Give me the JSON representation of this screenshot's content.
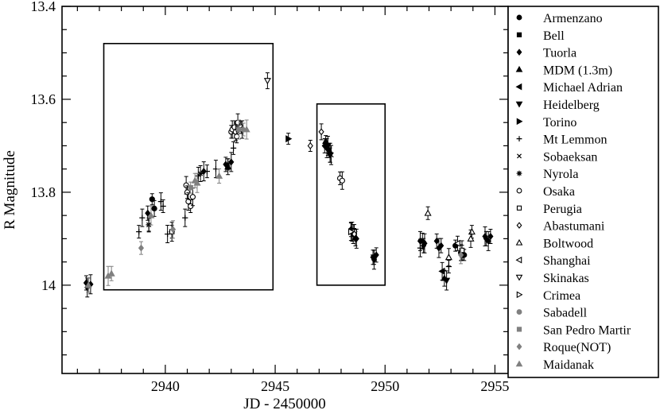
{
  "chart_data": {
    "type": "scatter",
    "xlabel": "JD - 2450000",
    "ylabel": "R Magnitude",
    "xlim": [
      2935.3,
      2955.6
    ],
    "ylim": [
      14.19,
      13.4
    ],
    "y_inverted": true,
    "x_ticks": [
      2940,
      2945,
      2950,
      2955
    ],
    "y_ticks": [
      13.4,
      13.6,
      13.8,
      14
    ],
    "x_tick_labels": [
      "2940",
      "2945",
      "2950",
      "2955"
    ],
    "y_tick_labels": [
      "13.4",
      "13.6",
      "13.8",
      "14"
    ],
    "grid": false,
    "legend_position": "right, outside",
    "highlight_boxes": [
      {
        "x": [
          2937.2,
          2944.9
        ],
        "y": [
          13.48,
          14.01
        ]
      },
      {
        "x": [
          2946.9,
          2950.0
        ],
        "y": [
          13.61,
          14.0
        ]
      }
    ],
    "series": [
      {
        "name": "Armenzano",
        "marker": "filled-circle",
        "color": "#000000",
        "points": [
          [
            2939.4,
            13.815
          ],
          [
            2939.5,
            13.835
          ],
          [
            2953.2,
            13.915
          ],
          [
            2953.45,
            13.93
          ],
          [
            2953.6,
            13.935
          ]
        ]
      },
      {
        "name": "Bell",
        "marker": "filled-square",
        "color": "#000000",
        "points": [
          [
            2953.5,
            13.928
          ]
        ]
      },
      {
        "name": "Tuorla",
        "marker": "filled-diamond",
        "color": "#000000",
        "points": [
          [
            2936.4,
            13.995
          ],
          [
            2936.45,
            14.005
          ],
          [
            2936.5,
            14.0
          ],
          [
            2936.6,
            13.998
          ],
          [
            2939.2,
            13.845
          ],
          [
            2941.75,
            13.755
          ],
          [
            2942.75,
            13.74
          ],
          [
            2943.0,
            13.735
          ],
          [
            2947.25,
            13.7
          ],
          [
            2947.35,
            13.705
          ],
          [
            2947.45,
            13.71
          ],
          [
            2947.5,
            13.715
          ],
          [
            2948.45,
            13.88
          ],
          [
            2948.55,
            13.89
          ],
          [
            2948.65,
            13.9
          ],
          [
            2948.7,
            13.9
          ],
          [
            2949.45,
            13.94
          ],
          [
            2949.5,
            13.945
          ],
          [
            2949.6,
            13.935
          ],
          [
            2951.6,
            13.905
          ],
          [
            2951.75,
            13.915
          ],
          [
            2951.8,
            13.91
          ],
          [
            2952.35,
            13.905
          ],
          [
            2952.45,
            13.92
          ],
          [
            2952.55,
            13.915
          ],
          [
            2954.55,
            13.895
          ],
          [
            2954.6,
            13.9
          ],
          [
            2954.7,
            13.905
          ],
          [
            2954.8,
            13.895
          ]
        ]
      },
      {
        "name": "MDM (1.3m)",
        "marker": "filled-triangle-up",
        "color": "#000000",
        "points": [
          [
            2942.85,
            13.745
          ],
          [
            2947.3,
            13.69
          ],
          [
            2952.7,
            13.985
          ]
        ]
      },
      {
        "name": "Michael Adrian",
        "marker": "filled-triangle-left",
        "color": "#000000",
        "points": [
          [
            2952.6,
            13.97
          ]
        ]
      },
      {
        "name": "Heidelberg",
        "marker": "filled-triangle-down",
        "color": "#000000",
        "points": [
          [
            2947.4,
            13.7
          ],
          [
            2947.5,
            13.72
          ],
          [
            2948.5,
            13.885
          ],
          [
            2949.5,
            13.94
          ],
          [
            2952.8,
            13.99
          ]
        ]
      },
      {
        "name": "Torino",
        "marker": "filled-triangle-right",
        "color": "#000000",
        "points": [
          [
            2945.6,
            13.685
          ],
          [
            2951.7,
            13.905
          ]
        ]
      },
      {
        "name": "Mt Lemmon",
        "marker": "plus",
        "color": "#000000",
        "points": [
          [
            2938.8,
            13.885
          ],
          [
            2938.95,
            13.855
          ],
          [
            2939.25,
            13.87
          ],
          [
            2939.8,
            13.82
          ],
          [
            2939.9,
            13.83
          ],
          [
            2940.1,
            13.89
          ],
          [
            2940.3,
            13.885
          ],
          [
            2940.9,
            13.855
          ],
          [
            2941.0,
            13.8
          ],
          [
            2941.5,
            13.765
          ],
          [
            2941.9,
            13.755
          ],
          [
            2942.3,
            13.75
          ],
          [
            2943.1,
            13.705
          ],
          [
            2951.6,
            13.92
          ],
          [
            2952.9,
            13.96
          ]
        ]
      },
      {
        "name": "Sobaeksan",
        "marker": "cross",
        "color": "#000000",
        "points": [
          [
            2939.25,
            13.87
          ],
          [
            2947.55,
            13.72
          ]
        ]
      },
      {
        "name": "Nyrola",
        "marker": "star",
        "color": "#000000",
        "points": [
          [
            2941.6,
            13.76
          ],
          [
            2942.85,
            13.74
          ]
        ]
      },
      {
        "name": "Osaka",
        "marker": "open-circle",
        "color": "#000000",
        "points": [
          [
            2940.95,
            13.785
          ],
          [
            2941.0,
            13.8
          ],
          [
            2941.05,
            13.82
          ],
          [
            2941.15,
            13.83
          ],
          [
            2941.25,
            13.81
          ],
          [
            2943.0,
            13.67
          ],
          [
            2943.05,
            13.665
          ],
          [
            2943.15,
            13.66
          ],
          [
            2943.2,
            13.67
          ],
          [
            2943.25,
            13.68
          ],
          [
            2943.3,
            13.65
          ],
          [
            2943.45,
            13.66
          ],
          [
            2943.5,
            13.665
          ],
          [
            2947.95,
            13.77
          ],
          [
            2948.05,
            13.775
          ]
        ]
      },
      {
        "name": "Perugia",
        "marker": "open-square",
        "color": "#000000",
        "points": [
          [
            2940.3,
            13.885
          ],
          [
            2948.6,
            13.885
          ],
          [
            2953.5,
            13.925
          ]
        ]
      },
      {
        "name": "Abastumani",
        "marker": "open-diamond",
        "color": "#000000",
        "points": [
          [
            2946.6,
            13.7
          ],
          [
            2947.1,
            13.67
          ],
          [
            2948.6,
            13.89
          ]
        ]
      },
      {
        "name": "Boltwood",
        "marker": "open-triangle-up",
        "color": "#000000",
        "points": [
          [
            2951.95,
            13.845
          ],
          [
            2952.9,
            13.94
          ],
          [
            2953.95,
            13.885
          ],
          [
            2953.9,
            13.9
          ]
        ]
      },
      {
        "name": "Shanghai",
        "marker": "open-triangle-left",
        "color": "#000000",
        "points": [
          [
            2953.3,
            13.91
          ]
        ]
      },
      {
        "name": "Skinakas",
        "marker": "open-triangle-down",
        "color": "#000000",
        "points": [
          [
            2944.65,
            13.56
          ]
        ]
      },
      {
        "name": "Crimea",
        "marker": "open-triangle-right",
        "color": "#000000",
        "points": [
          [
            2948.45,
            13.885
          ]
        ]
      },
      {
        "name": "Sabadell",
        "marker": "filled-circle",
        "color": "#808080",
        "points": [
          [
            2943.35,
            13.665
          ]
        ]
      },
      {
        "name": "San Pedro Martir",
        "marker": "filled-square",
        "color": "#808080",
        "points": [
          [
            2941.15,
            13.79
          ]
        ]
      },
      {
        "name": "Roque(NOT)",
        "marker": "filled-diamond",
        "color": "#808080",
        "points": [
          [
            2938.9,
            13.92
          ],
          [
            2940.35,
            13.88
          ],
          [
            2943.55,
            13.665
          ],
          [
            2953.45,
            13.935
          ]
        ]
      },
      {
        "name": "Maidanak",
        "marker": "filled-triangle-up",
        "color": "#808080",
        "points": [
          [
            2936.5,
            14.0
          ],
          [
            2937.4,
            13.98
          ],
          [
            2937.55,
            13.975
          ],
          [
            2939.35,
            13.85
          ],
          [
            2941.35,
            13.775
          ],
          [
            2941.45,
            13.78
          ],
          [
            2942.45,
            13.765
          ],
          [
            2943.7,
            13.665
          ]
        ]
      }
    ]
  }
}
